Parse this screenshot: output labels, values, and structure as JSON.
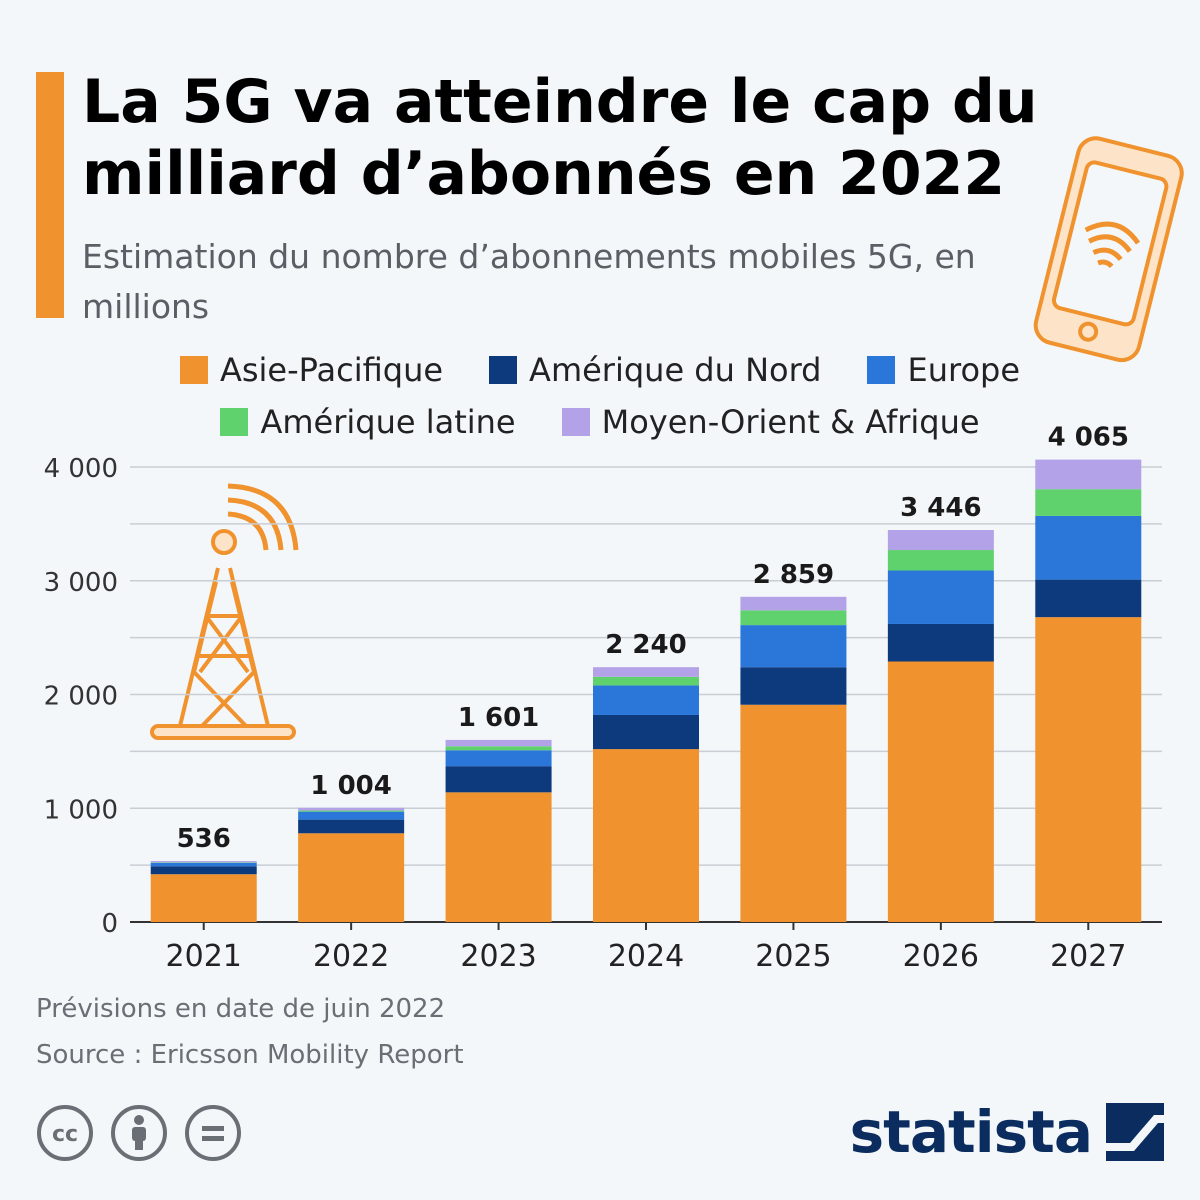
{
  "header": {
    "title": "La 5G va atteindre le cap du milliard d’abonnés en 2022",
    "subtitle": "Estimation du nombre d’abonnements mobiles 5G, en millions"
  },
  "colors": {
    "accent": "#f0922d",
    "asia": "#f0922d",
    "north_america": "#0d3a7d",
    "europe": "#2a77d9",
    "latin_america": "#5fd16d",
    "mea": "#b3a2e8",
    "grid": "#c9ced4",
    "brand": "#0b2c5e"
  },
  "chart_data": {
    "type": "bar",
    "stacked": true,
    "categories": [
      "2021",
      "2022",
      "2023",
      "2024",
      "2025",
      "2026",
      "2027"
    ],
    "series": [
      {
        "name": "Asie-Pacifique",
        "values": [
          420,
          780,
          1140,
          1520,
          1910,
          2290,
          2680
        ]
      },
      {
        "name": "Amérique du Nord",
        "values": [
          70,
          120,
          230,
          300,
          330,
          330,
          330
        ]
      },
      {
        "name": "Europe",
        "values": [
          30,
          70,
          140,
          260,
          370,
          470,
          560
        ]
      },
      {
        "name": "Amérique latine",
        "values": [
          4,
          10,
          35,
          75,
          130,
          180,
          235
        ]
      },
      {
        "name": "Moyen-Orient & Afrique",
        "values": [
          12,
          24,
          56,
          85,
          119,
          176,
          260
        ]
      }
    ],
    "totals": [
      536,
      1004,
      1601,
      2240,
      2859,
      3446,
      4065
    ],
    "total_labels": [
      "536",
      "1 004",
      "1 601",
      "2 240",
      "2 859",
      "3 446",
      "4 065"
    ],
    "yticks": [
      0,
      1000,
      2000,
      3000,
      4000
    ],
    "ytick_labels": [
      "0",
      "1 000",
      "2 000",
      "3 000",
      "4 000"
    ],
    "ylim": [
      0,
      4000
    ],
    "grid": true,
    "legend_position": "top"
  },
  "footer": {
    "note": "Prévisions en date de juin 2022",
    "source": "Source : Ericsson Mobility Report"
  },
  "brand": {
    "name": "statista"
  },
  "icons": [
    "creative-commons-icon",
    "attribution-icon",
    "no-derivatives-icon",
    "smartphone-wifi-icon",
    "cell-tower-icon",
    "statista-logo-icon"
  ]
}
